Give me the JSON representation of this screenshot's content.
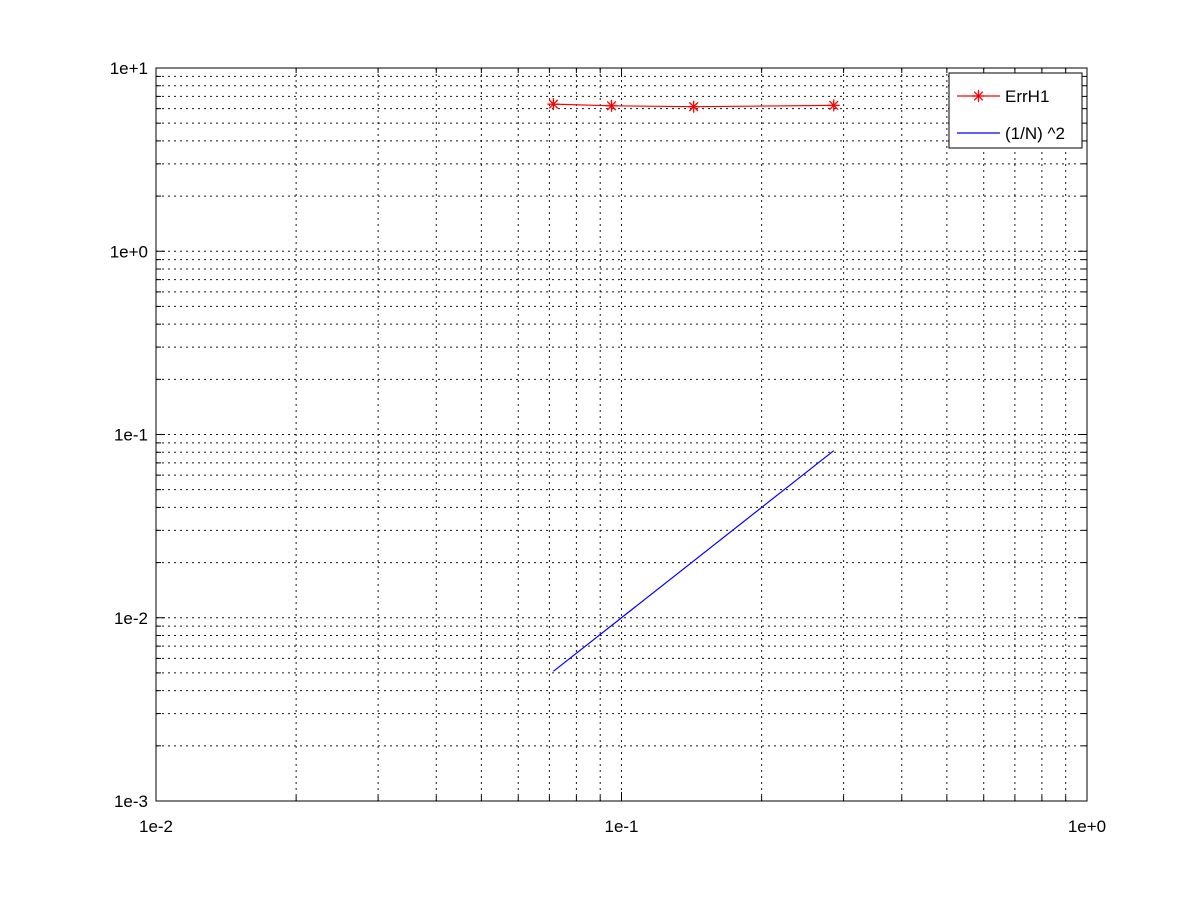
{
  "chart_data": {
    "type": "line",
    "title": "",
    "xlabel": "",
    "ylabel": "",
    "xscale": "log",
    "yscale": "log",
    "xlim": [
      0.01,
      1
    ],
    "ylim": [
      0.001,
      10
    ],
    "grid": true,
    "grid_style": "dotted major and minor",
    "legend_position": "top-right",
    "x_ticks": [
      {
        "value": 0.01,
        "label": "1e-2"
      },
      {
        "value": 0.1,
        "label": "1e-1"
      },
      {
        "value": 1,
        "label": "1e+0"
      }
    ],
    "y_ticks": [
      {
        "value": 0.001,
        "label": "1e-3"
      },
      {
        "value": 0.01,
        "label": "1e-2"
      },
      {
        "value": 0.1,
        "label": "1e-1"
      },
      {
        "value": 1,
        "label": "1e+0"
      },
      {
        "value": 10,
        "label": "1e+1"
      }
    ],
    "series": [
      {
        "name": "ErrH1",
        "color": "#ff0000",
        "marker": "asterisk",
        "x": [
          0.0714,
          0.0952,
          0.1429,
          0.2857
        ],
        "y": [
          6.35,
          6.22,
          6.15,
          6.25
        ]
      },
      {
        "name": "(1/N) ^2",
        "color": "#0000ff",
        "marker": "none",
        "x": [
          0.0714,
          0.2857
        ],
        "y": [
          0.0051,
          0.0816
        ]
      }
    ]
  }
}
